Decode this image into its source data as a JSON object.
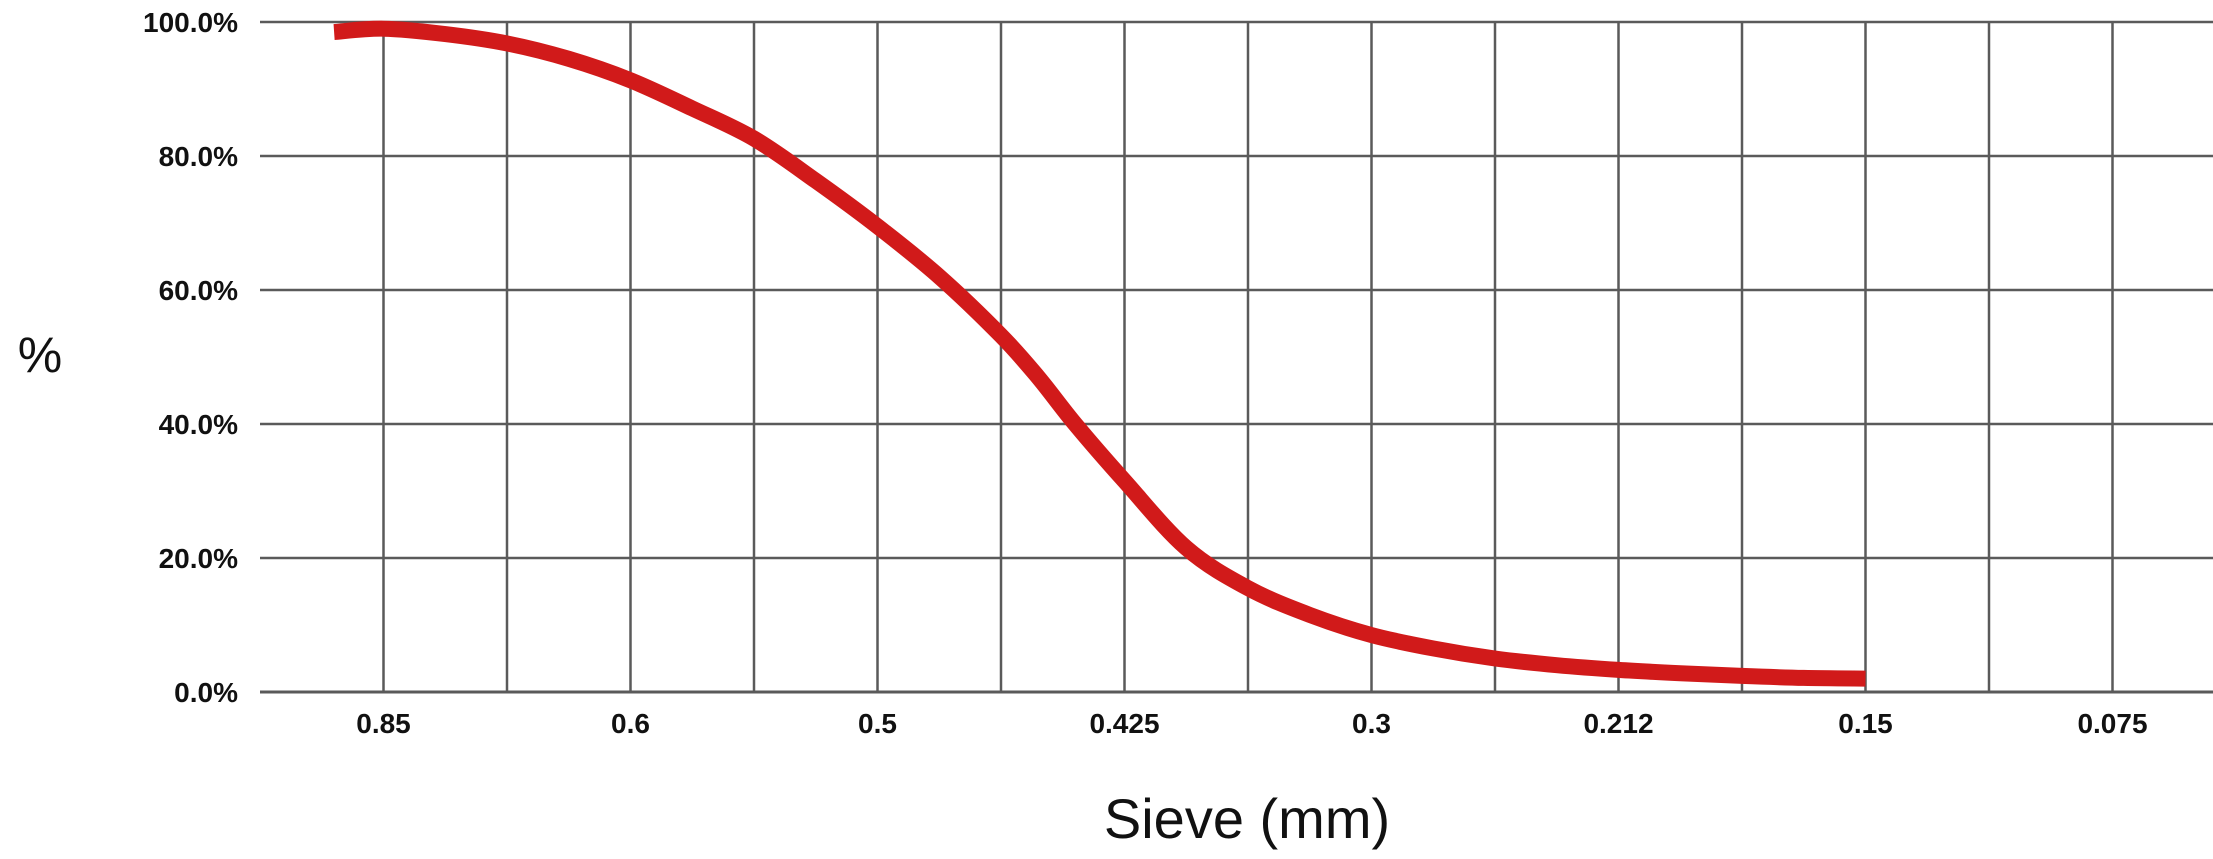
{
  "chart_data": {
    "type": "line",
    "title": "",
    "xlabel": "Sieve (mm)",
    "ylabel": "%",
    "categories": [
      "0.85",
      "0.6",
      "0.5",
      "0.425",
      "0.3",
      "0.212",
      "0.15",
      "0.075"
    ],
    "ylim": [
      0,
      100
    ],
    "y_ticks": [
      "0.0%",
      "20.0%",
      "40.0%",
      "60.0%",
      "80.0%",
      "100.0%"
    ],
    "grid": true,
    "series_color": "#d11a1a",
    "grid_color": "#5a5a5a",
    "series": [
      {
        "x": [
          0.6,
          1.0,
          1.5,
          2.0,
          2.5,
          3.0,
          3.5,
          4.0,
          4.5,
          5.0,
          5.5,
          6.0,
          6.3,
          6.6,
          7.0,
          7.5,
          8.0,
          8.5,
          9.0,
          9.5,
          10.0,
          10.5,
          11.0,
          11.5,
          12.0,
          12.5,
          13.0
        ],
        "y": [
          98.5,
          99,
          98.2,
          96.8,
          94.5,
          91.3,
          87.1,
          82.6,
          76.3,
          69.5,
          62.0,
          53.2,
          47.0,
          40.0,
          31.5,
          21.5,
          15.5,
          11.5,
          8.5,
          6.5,
          5.0,
          4.0,
          3.3,
          2.8,
          2.4,
          2.1,
          2.0
        ]
      }
    ]
  }
}
